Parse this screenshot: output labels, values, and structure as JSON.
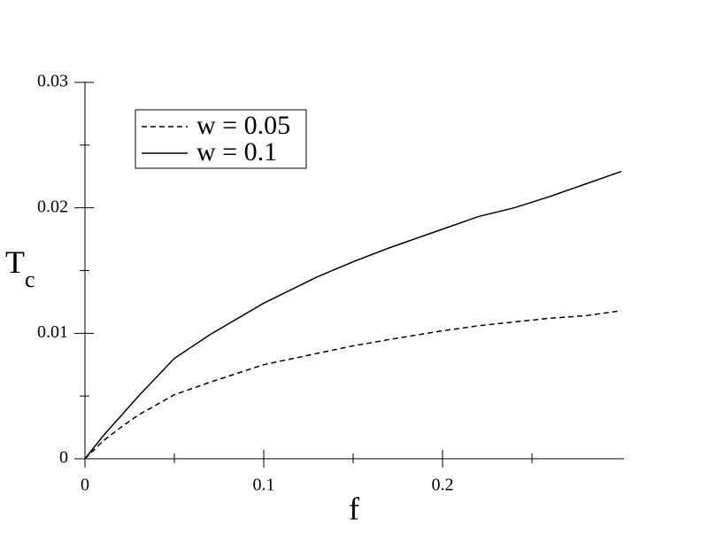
{
  "chart_data": {
    "type": "line",
    "xlabel": "f",
    "ylabel": {
      "main": "T",
      "sub": "c"
    },
    "x": [
      0,
      0.01,
      0.02,
      0.03,
      0.05,
      0.07,
      0.1,
      0.13,
      0.15,
      0.17,
      0.2,
      0.22,
      0.24,
      0.26,
      0.28,
      0.3
    ],
    "series": [
      {
        "name": "w = 0.05",
        "color": "#000000",
        "dash": "6,4",
        "values": [
          0,
          0.0014,
          0.0025,
          0.0035,
          0.0051,
          0.0061,
          0.0075,
          0.0084,
          0.009,
          0.0095,
          0.0102,
          0.0106,
          0.0109,
          0.0112,
          0.0114,
          0.0118
        ]
      },
      {
        "name": "w = 0.1",
        "color": "#000000",
        "dash": "none",
        "values": [
          0,
          0.0018,
          0.0034,
          0.005,
          0.008,
          0.0099,
          0.0124,
          0.0145,
          0.0157,
          0.0168,
          0.0183,
          0.0193,
          0.02,
          0.0209,
          0.0219,
          0.0229
        ]
      }
    ],
    "xlim": [
      0,
      0.3
    ],
    "ylim": [
      0,
      0.03
    ],
    "xticks": [
      0,
      0.1,
      0.2
    ],
    "xminorticks": [
      0.05,
      0.15,
      0.25
    ],
    "yticks": [
      0,
      0.01,
      0.02,
      0.03
    ],
    "yminorticks": [
      0.005,
      0.015,
      0.025
    ],
    "legend": "upper left",
    "grid": false
  }
}
